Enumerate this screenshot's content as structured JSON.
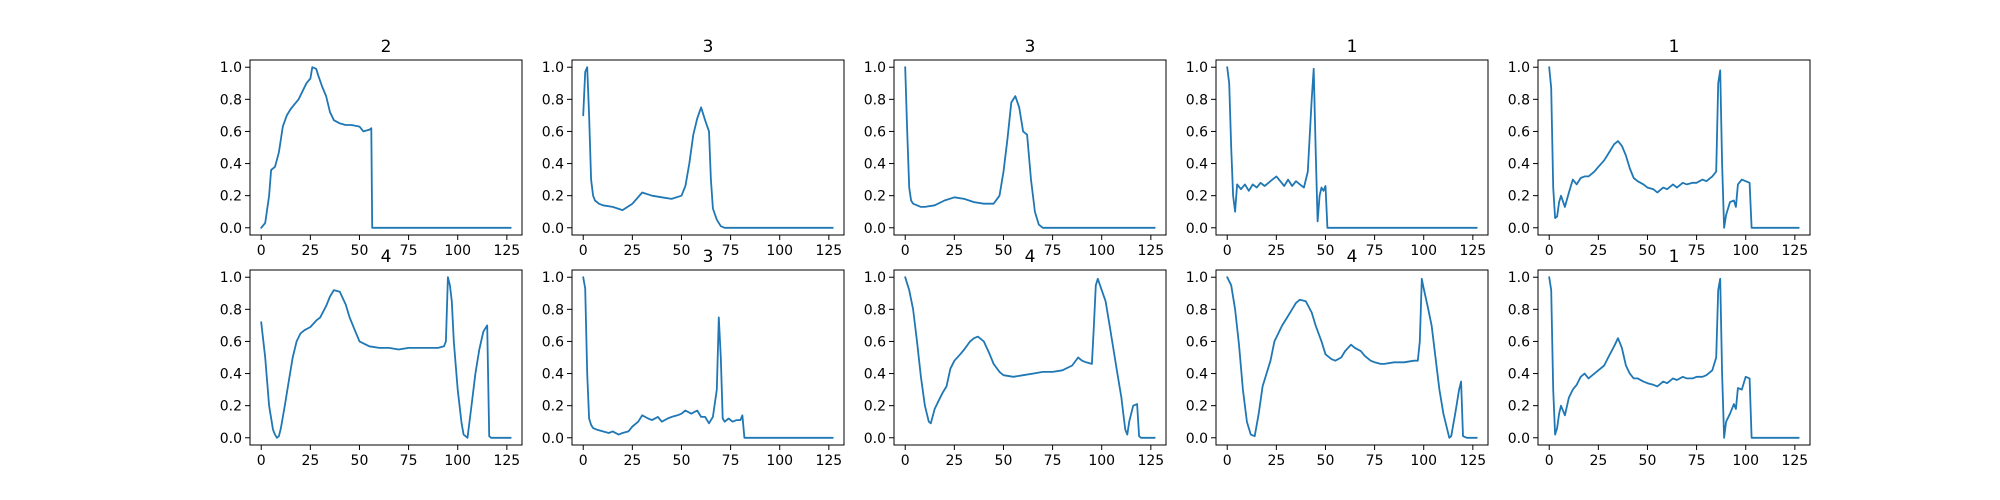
{
  "colors": {
    "line": "#1f77b4",
    "background": "#ffffff",
    "axes": "#000000"
  },
  "chart_data": [
    {
      "type": "line",
      "title": "2",
      "xlim": [
        0,
        127
      ],
      "ylim": [
        0,
        1.0
      ],
      "x_ticks": [
        0,
        25,
        50,
        75,
        100,
        125
      ],
      "y_ticks": [
        0.0,
        0.2,
        0.4,
        0.6,
        0.8,
        1.0
      ],
      "x_tick_labels": [
        "0",
        "25",
        "50",
        "75",
        "100",
        "125"
      ],
      "y_tick_labels": [
        "0.0",
        "0.2",
        "0.4",
        "0.6",
        "0.8",
        "1.0"
      ],
      "x": [
        0,
        2,
        4,
        5,
        7,
        9,
        11,
        13,
        15,
        17,
        19,
        21,
        23,
        25,
        26,
        28,
        29,
        31,
        33,
        35,
        37,
        40,
        43,
        46,
        50,
        52,
        55,
        56,
        56.5,
        57,
        127
      ],
      "y": [
        0.0,
        0.03,
        0.2,
        0.36,
        0.38,
        0.47,
        0.63,
        0.7,
        0.74,
        0.77,
        0.8,
        0.85,
        0.9,
        0.93,
        1.0,
        0.99,
        0.95,
        0.88,
        0.82,
        0.72,
        0.67,
        0.65,
        0.64,
        0.64,
        0.63,
        0.6,
        0.61,
        0.62,
        0.0,
        0.0,
        0.0
      ]
    },
    {
      "type": "line",
      "title": "3",
      "xlim": [
        0,
        127
      ],
      "ylim": [
        0,
        1.0
      ],
      "x_ticks": [
        0,
        25,
        50,
        75,
        100,
        125
      ],
      "y_ticks": [
        0.0,
        0.2,
        0.4,
        0.6,
        0.8,
        1.0
      ],
      "x_tick_labels": [
        "0",
        "25",
        "50",
        "75",
        "100",
        "125"
      ],
      "y_tick_labels": [
        "0.0",
        "0.2",
        "0.4",
        "0.6",
        "0.8",
        "1.0"
      ],
      "x": [
        0,
        1,
        2,
        3,
        4,
        5,
        6,
        8,
        10,
        15,
        20,
        25,
        30,
        35,
        40,
        45,
        50,
        52,
        54,
        56,
        58,
        60,
        62,
        64,
        65,
        66,
        68,
        70,
        72,
        74,
        127
      ],
      "y": [
        0.7,
        0.97,
        1.0,
        0.7,
        0.3,
        0.2,
        0.17,
        0.15,
        0.14,
        0.13,
        0.11,
        0.15,
        0.22,
        0.2,
        0.19,
        0.18,
        0.2,
        0.26,
        0.4,
        0.58,
        0.68,
        0.75,
        0.67,
        0.6,
        0.3,
        0.12,
        0.05,
        0.01,
        0.0,
        0.0,
        0.0
      ]
    },
    {
      "type": "line",
      "title": "3",
      "xlim": [
        0,
        127
      ],
      "ylim": [
        0,
        1.0
      ],
      "x_ticks": [
        0,
        25,
        50,
        75,
        100,
        125
      ],
      "y_ticks": [
        0.0,
        0.2,
        0.4,
        0.6,
        0.8,
        1.0
      ],
      "x_tick_labels": [
        "0",
        "25",
        "50",
        "75",
        "100",
        "125"
      ],
      "y_tick_labels": [
        "0.0",
        "0.2",
        "0.4",
        "0.6",
        "0.8",
        "1.0"
      ],
      "x": [
        0,
        1,
        2,
        3,
        4,
        6,
        8,
        10,
        15,
        20,
        25,
        30,
        35,
        40,
        45,
        48,
        50,
        52,
        54,
        56,
        58,
        60,
        62,
        64,
        66,
        68,
        70,
        127
      ],
      "y": [
        1.0,
        0.6,
        0.25,
        0.17,
        0.15,
        0.14,
        0.13,
        0.13,
        0.14,
        0.17,
        0.19,
        0.18,
        0.16,
        0.15,
        0.15,
        0.2,
        0.35,
        0.55,
        0.78,
        0.82,
        0.75,
        0.6,
        0.58,
        0.3,
        0.1,
        0.02,
        0.0,
        0.0
      ]
    },
    {
      "type": "line",
      "title": "1",
      "xlim": [
        0,
        127
      ],
      "ylim": [
        0,
        1.0
      ],
      "x_ticks": [
        0,
        25,
        50,
        75,
        100,
        125
      ],
      "y_ticks": [
        0.0,
        0.2,
        0.4,
        0.6,
        0.8,
        1.0
      ],
      "x_tick_labels": [
        "0",
        "25",
        "50",
        "75",
        "100",
        "125"
      ],
      "y_tick_labels": [
        "0.0",
        "0.2",
        "0.4",
        "0.6",
        "0.8",
        "1.0"
      ],
      "x": [
        0,
        1,
        2,
        3,
        4,
        5,
        7,
        9,
        11,
        13,
        15,
        17,
        19,
        21,
        23,
        25,
        27,
        29,
        31,
        33,
        35,
        37,
        39,
        41,
        43,
        44,
        45,
        46,
        47,
        48,
        49,
        50,
        51,
        52,
        127
      ],
      "y": [
        1.0,
        0.9,
        0.5,
        0.2,
        0.1,
        0.27,
        0.24,
        0.27,
        0.23,
        0.27,
        0.25,
        0.28,
        0.26,
        0.28,
        0.3,
        0.32,
        0.29,
        0.26,
        0.3,
        0.26,
        0.29,
        0.27,
        0.25,
        0.35,
        0.8,
        0.99,
        0.5,
        0.04,
        0.2,
        0.25,
        0.23,
        0.26,
        0.0,
        0.0,
        0.0
      ]
    },
    {
      "type": "line",
      "title": "1",
      "xlim": [
        0,
        127
      ],
      "ylim": [
        0,
        1.0
      ],
      "x_ticks": [
        0,
        25,
        50,
        75,
        100,
        125
      ],
      "y_ticks": [
        0.0,
        0.2,
        0.4,
        0.6,
        0.8,
        1.0
      ],
      "x_tick_labels": [
        "0",
        "25",
        "50",
        "75",
        "100",
        "125"
      ],
      "y_tick_labels": [
        "0.0",
        "0.2",
        "0.4",
        "0.6",
        "0.8",
        "1.0"
      ],
      "x": [
        0,
        1,
        2,
        3,
        4,
        5,
        6,
        8,
        10,
        12,
        14,
        16,
        18,
        20,
        23,
        25,
        28,
        30,
        33,
        35,
        37,
        39,
        41,
        43,
        45,
        48,
        50,
        53,
        55,
        58,
        60,
        63,
        65,
        68,
        70,
        73,
        75,
        78,
        80,
        83,
        85,
        86,
        87,
        88,
        89,
        90,
        92,
        94,
        95,
        96,
        98,
        100,
        102,
        103,
        104,
        127
      ],
      "y": [
        1.0,
        0.87,
        0.25,
        0.06,
        0.07,
        0.16,
        0.2,
        0.13,
        0.22,
        0.3,
        0.27,
        0.31,
        0.32,
        0.32,
        0.35,
        0.38,
        0.42,
        0.46,
        0.52,
        0.54,
        0.51,
        0.45,
        0.37,
        0.31,
        0.29,
        0.27,
        0.25,
        0.24,
        0.22,
        0.25,
        0.24,
        0.27,
        0.25,
        0.28,
        0.27,
        0.28,
        0.28,
        0.3,
        0.29,
        0.32,
        0.35,
        0.9,
        0.98,
        0.4,
        0.0,
        0.08,
        0.16,
        0.17,
        0.13,
        0.27,
        0.3,
        0.29,
        0.28,
        0.0,
        0.0,
        0.0
      ]
    },
    {
      "type": "line",
      "title": "4",
      "xlim": [
        0,
        127
      ],
      "ylim": [
        0,
        1.0
      ],
      "x_ticks": [
        0,
        25,
        50,
        75,
        100,
        125
      ],
      "y_ticks": [
        0.0,
        0.2,
        0.4,
        0.6,
        0.8,
        1.0
      ],
      "x_tick_labels": [
        "0",
        "25",
        "50",
        "75",
        "100",
        "125"
      ],
      "y_tick_labels": [
        "0.0",
        "0.2",
        "0.4",
        "0.6",
        "0.8",
        "1.0"
      ],
      "x": [
        0,
        2,
        4,
        6,
        7,
        8,
        9,
        10,
        12,
        14,
        16,
        18,
        20,
        22,
        25,
        28,
        30,
        33,
        35,
        37,
        40,
        43,
        45,
        48,
        50,
        55,
        60,
        65,
        70,
        75,
        80,
        85,
        90,
        93,
        94,
        95,
        96,
        97,
        98,
        100,
        102,
        103,
        105,
        107,
        109,
        111,
        113,
        114,
        115,
        116,
        117,
        118,
        127
      ],
      "y": [
        0.72,
        0.5,
        0.2,
        0.05,
        0.02,
        0.0,
        0.01,
        0.06,
        0.2,
        0.35,
        0.5,
        0.6,
        0.65,
        0.67,
        0.69,
        0.73,
        0.75,
        0.82,
        0.88,
        0.92,
        0.91,
        0.83,
        0.75,
        0.66,
        0.6,
        0.57,
        0.56,
        0.56,
        0.55,
        0.56,
        0.56,
        0.56,
        0.56,
        0.57,
        0.6,
        1.0,
        0.95,
        0.85,
        0.6,
        0.3,
        0.09,
        0.02,
        0.0,
        0.2,
        0.4,
        0.55,
        0.66,
        0.68,
        0.7,
        0.01,
        0.0,
        0.0,
        0.0
      ]
    },
    {
      "type": "line",
      "title": "3",
      "xlim": [
        0,
        127
      ],
      "ylim": [
        0,
        1.0
      ],
      "x_ticks": [
        0,
        25,
        50,
        75,
        100,
        125
      ],
      "y_ticks": [
        0.0,
        0.2,
        0.4,
        0.6,
        0.8,
        1.0
      ],
      "x_tick_labels": [
        "0",
        "25",
        "50",
        "75",
        "100",
        "125"
      ],
      "y_tick_labels": [
        "0.0",
        "0.2",
        "0.4",
        "0.6",
        "0.8",
        "1.0"
      ],
      "x": [
        0,
        1,
        2,
        3,
        4,
        5,
        7,
        10,
        13,
        15,
        18,
        20,
        23,
        25,
        28,
        30,
        33,
        35,
        38,
        40,
        43,
        45,
        48,
        50,
        52,
        55,
        58,
        60,
        62,
        64,
        66,
        68,
        69,
        70,
        71,
        72,
        74,
        76,
        78,
        80,
        81,
        82,
        127
      ],
      "y": [
        1.0,
        0.93,
        0.4,
        0.12,
        0.08,
        0.06,
        0.05,
        0.04,
        0.03,
        0.04,
        0.02,
        0.03,
        0.04,
        0.07,
        0.1,
        0.14,
        0.12,
        0.11,
        0.13,
        0.1,
        0.12,
        0.13,
        0.14,
        0.15,
        0.17,
        0.15,
        0.17,
        0.13,
        0.13,
        0.09,
        0.13,
        0.3,
        0.75,
        0.5,
        0.12,
        0.1,
        0.12,
        0.1,
        0.11,
        0.11,
        0.14,
        0.0,
        0.0
      ]
    },
    {
      "type": "line",
      "title": "4",
      "xlim": [
        0,
        127
      ],
      "ylim": [
        0,
        1.0
      ],
      "x_ticks": [
        0,
        25,
        50,
        75,
        100,
        125
      ],
      "y_ticks": [
        0.0,
        0.2,
        0.4,
        0.6,
        0.8,
        1.0
      ],
      "x_tick_labels": [
        "0",
        "25",
        "50",
        "75",
        "100",
        "125"
      ],
      "y_tick_labels": [
        "0.0",
        "0.2",
        "0.4",
        "0.6",
        "0.8",
        "1.0"
      ],
      "x": [
        0,
        2,
        4,
        6,
        8,
        10,
        12,
        13,
        15,
        17,
        19,
        21,
        23,
        25,
        28,
        30,
        33,
        35,
        37,
        40,
        43,
        45,
        48,
        50,
        55,
        60,
        65,
        70,
        75,
        80,
        85,
        88,
        90,
        92,
        95,
        96,
        97,
        98,
        100,
        102,
        104,
        106,
        108,
        110,
        111,
        112,
        113,
        114,
        116,
        118,
        119,
        120,
        127
      ],
      "y": [
        1.0,
        0.92,
        0.8,
        0.6,
        0.38,
        0.2,
        0.1,
        0.09,
        0.18,
        0.23,
        0.28,
        0.32,
        0.43,
        0.48,
        0.52,
        0.55,
        0.6,
        0.62,
        0.63,
        0.6,
        0.52,
        0.46,
        0.41,
        0.39,
        0.38,
        0.39,
        0.4,
        0.41,
        0.41,
        0.42,
        0.45,
        0.5,
        0.48,
        0.47,
        0.46,
        0.7,
        0.95,
        0.99,
        0.92,
        0.85,
        0.7,
        0.55,
        0.4,
        0.25,
        0.15,
        0.05,
        0.02,
        0.1,
        0.2,
        0.21,
        0.01,
        0.0,
        0.0
      ]
    },
    {
      "type": "line",
      "title": "4",
      "xlim": [
        0,
        127
      ],
      "ylim": [
        0,
        1.0
      ],
      "x_ticks": [
        0,
        25,
        50,
        75,
        100,
        125
      ],
      "y_ticks": [
        0.0,
        0.2,
        0.4,
        0.6,
        0.8,
        1.0
      ],
      "x_tick_labels": [
        "0",
        "25",
        "50",
        "75",
        "100",
        "125"
      ],
      "y_tick_labels": [
        "0.0",
        "0.2",
        "0.4",
        "0.6",
        "0.8",
        "1.0"
      ],
      "x": [
        0,
        2,
        4,
        6,
        8,
        10,
        12,
        14,
        16,
        18,
        20,
        22,
        24,
        26,
        28,
        30,
        33,
        35,
        37,
        40,
        43,
        45,
        48,
        50,
        53,
        55,
        58,
        60,
        63,
        65,
        68,
        70,
        73,
        75,
        78,
        80,
        85,
        90,
        95,
        97,
        98,
        99,
        100,
        102,
        104,
        106,
        108,
        110,
        112,
        113,
        114,
        116,
        118,
        119,
        120,
        122,
        127
      ],
      "y": [
        1.0,
        0.95,
        0.8,
        0.58,
        0.3,
        0.1,
        0.02,
        0.01,
        0.15,
        0.32,
        0.4,
        0.48,
        0.6,
        0.65,
        0.7,
        0.74,
        0.8,
        0.84,
        0.86,
        0.85,
        0.78,
        0.7,
        0.6,
        0.52,
        0.49,
        0.48,
        0.5,
        0.54,
        0.58,
        0.56,
        0.54,
        0.51,
        0.48,
        0.47,
        0.46,
        0.46,
        0.47,
        0.47,
        0.48,
        0.48,
        0.6,
        0.99,
        0.93,
        0.82,
        0.7,
        0.5,
        0.3,
        0.15,
        0.05,
        0.0,
        0.01,
        0.15,
        0.3,
        0.35,
        0.01,
        0.0,
        0.0
      ]
    },
    {
      "type": "line",
      "title": "1",
      "xlim": [
        0,
        127
      ],
      "ylim": [
        0,
        1.0
      ],
      "x_ticks": [
        0,
        25,
        50,
        75,
        100,
        125
      ],
      "y_ticks": [
        0.0,
        0.2,
        0.4,
        0.6,
        0.8,
        1.0
      ],
      "x_tick_labels": [
        "0",
        "25",
        "50",
        "75",
        "100",
        "125"
      ],
      "y_tick_labels": [
        "0.0",
        "0.2",
        "0.4",
        "0.6",
        "0.8",
        "1.0"
      ],
      "x": [
        0,
        1,
        2,
        3,
        4,
        5,
        6,
        8,
        10,
        12,
        14,
        16,
        18,
        20,
        23,
        25,
        28,
        30,
        33,
        35,
        37,
        39,
        41,
        43,
        45,
        48,
        50,
        53,
        55,
        58,
        60,
        63,
        65,
        68,
        70,
        73,
        75,
        78,
        80,
        83,
        85,
        86,
        87,
        88,
        89,
        90,
        92,
        94,
        95,
        96,
        98,
        100,
        102,
        103,
        104,
        127
      ],
      "y": [
        1.0,
        0.92,
        0.3,
        0.02,
        0.06,
        0.15,
        0.2,
        0.14,
        0.25,
        0.3,
        0.33,
        0.38,
        0.4,
        0.37,
        0.4,
        0.42,
        0.45,
        0.5,
        0.57,
        0.62,
        0.56,
        0.45,
        0.4,
        0.37,
        0.37,
        0.35,
        0.34,
        0.33,
        0.32,
        0.35,
        0.34,
        0.37,
        0.36,
        0.38,
        0.37,
        0.37,
        0.38,
        0.38,
        0.39,
        0.42,
        0.5,
        0.92,
        0.99,
        0.4,
        0.0,
        0.1,
        0.15,
        0.21,
        0.18,
        0.31,
        0.3,
        0.38,
        0.37,
        0.0,
        0.0,
        0.0
      ]
    }
  ]
}
